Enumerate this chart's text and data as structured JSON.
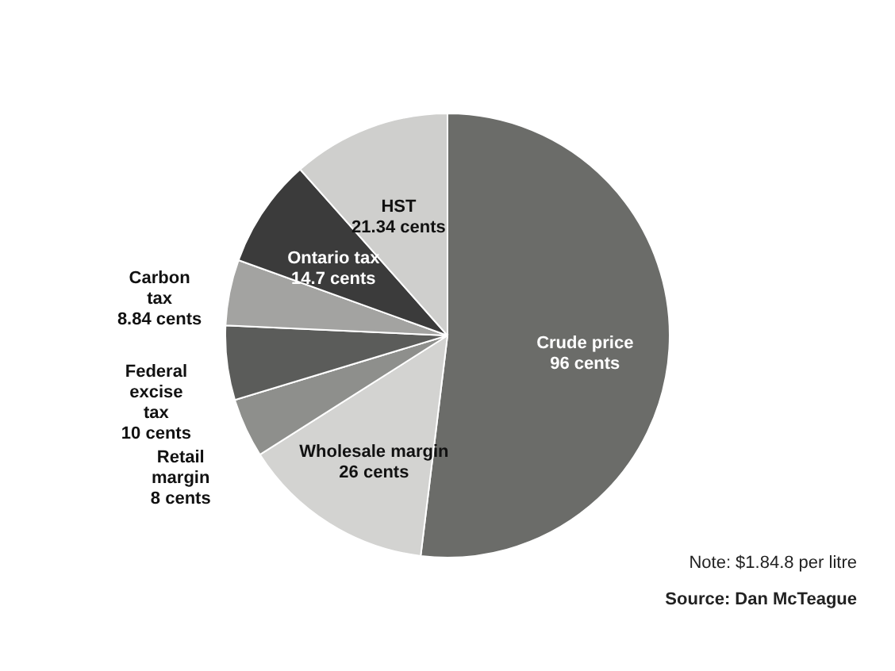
{
  "chart_data": {
    "type": "pie",
    "categories": [
      "Crude price",
      "Wholesale margin",
      "Retail margin",
      "Federal excise tax",
      "Carbon tax",
      "Ontario tax",
      "HST"
    ],
    "values": [
      96,
      26,
      8,
      10,
      8.84,
      14.7,
      21.34
    ],
    "value_labels": [
      "96 cents",
      "26 cents",
      "8 cents",
      "10 cents",
      "8.84 cents",
      "14.7 cents",
      "21.34 cents"
    ],
    "colors": [
      "#6b6c69",
      "#d3d3d1",
      "#8e8f8c",
      "#5b5c5a",
      "#a3a3a1",
      "#3b3b3b",
      "#cfcfcd"
    ],
    "annotations": [
      "Note: $1.84.8 per litre",
      "Source: Dan McTeague"
    ]
  }
}
